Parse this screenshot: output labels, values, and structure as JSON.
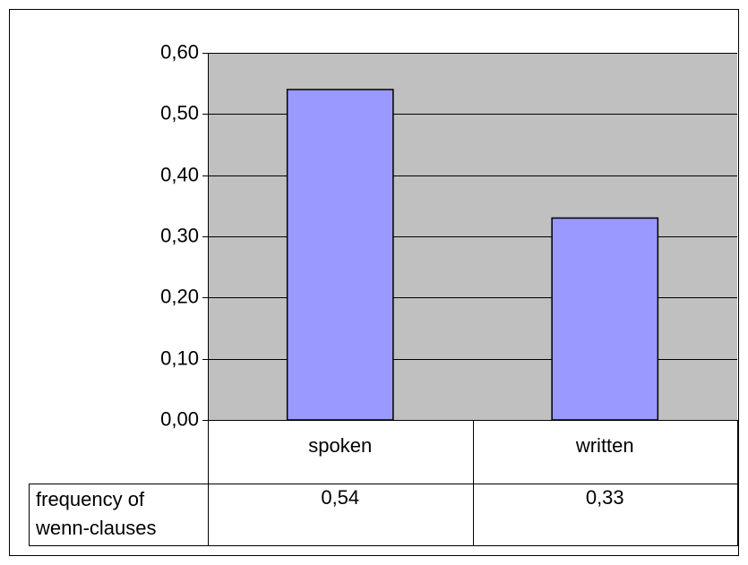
{
  "chart_data": {
    "type": "bar",
    "categories": [
      "spoken",
      "written"
    ],
    "series": [
      {
        "name": "frequency of wenn-clauses",
        "color": "#9999ff",
        "values": [
          0.54,
          0.33
        ],
        "value_labels": [
          "0,54",
          "0,33"
        ]
      }
    ],
    "ylim": [
      0,
      0.6
    ],
    "yticks": [
      {
        "value": 0,
        "label": "0,00"
      },
      {
        "value": 0.1,
        "label": "0,10"
      },
      {
        "value": 0.2,
        "label": "0,20"
      },
      {
        "value": 0.3,
        "label": "0,30"
      },
      {
        "value": 0.4,
        "label": "0,40"
      },
      {
        "value": 0.5,
        "label": "0,50"
      },
      {
        "value": 0.6,
        "label": "0,60"
      }
    ],
    "grid": true
  }
}
